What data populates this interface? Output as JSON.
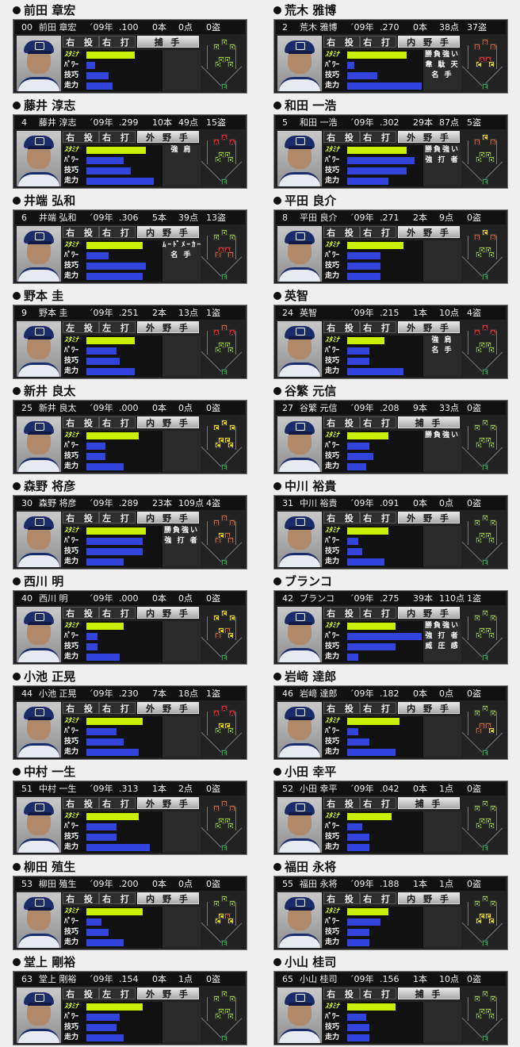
{
  "labels": {
    "stamina": "ｽﾀﾐﾅ",
    "power": "ﾊﾟﾜｰ",
    "technique": "技巧",
    "speed": "走力"
  },
  "grade_colors": {
    "A": "#d12a2a",
    "B": "#d0652a",
    "C": "#e8d81a",
    "D": "#9ccc2a",
    "E": "#2aa64a",
    "S": "#cc2ad0"
  },
  "bar_colors": {
    "stamina": "#c8f000",
    "other": "#3344dd"
  },
  "players": [
    {
      "name": "前田 章宏",
      "num": "00",
      "short": "前田 章宏",
      "year": "´09年",
      "avg": ".100",
      "hr": "0本",
      "rbi": "0点",
      "sb": "0盗",
      "throw": "右 投",
      "bat": "右 打",
      "pos": "捕 手",
      "stamina": 0.65,
      "power": 0.12,
      "tech": 0.3,
      "speed": 0.35,
      "abilities": [],
      "field": {
        "LF": "D",
        "CF": "D",
        "RF": "D",
        "3B": "D",
        "SS": "D",
        "2B": "D",
        "1B": "D",
        "C": "E"
      }
    },
    {
      "name": "荒木 雅博",
      "num": "2",
      "short": "荒木 雅博",
      "year": "´09年",
      "avg": ".270",
      "hr": "0本",
      "rbi": "38点",
      "sb": "37盗",
      "throw": "右 投",
      "bat": "右 打",
      "pos": "内 野 手",
      "stamina": 0.8,
      "power": 0.1,
      "tech": 0.4,
      "speed": 1.0,
      "abilities": [
        "勝負強い",
        "韋 駄 天",
        "名  手"
      ],
      "field": {
        "LF": "B",
        "CF": "B",
        "RF": "B",
        "3B": "C",
        "SS": "A",
        "2B": "A",
        "1B": "C",
        "C": "E"
      }
    },
    {
      "name": "藤井 淳志",
      "num": "4",
      "short": "藤井 淳志",
      "year": "´09年",
      "avg": ".299",
      "hr": "10本",
      "rbi": "49点",
      "sb": "15盗",
      "throw": "右 投",
      "bat": "右 打",
      "pos": "外 野 手",
      "stamina": 0.8,
      "power": 0.5,
      "tech": 0.6,
      "speed": 0.9,
      "abilities": [
        "強  肩"
      ],
      "field": {
        "LF": "A",
        "CF": "A",
        "RF": "A",
        "3B": "D",
        "SS": "D",
        "2B": "D",
        "1B": "D",
        "C": "E"
      }
    },
    {
      "name": "和田 一浩",
      "num": "5",
      "short": "和田 一浩",
      "year": "´09年",
      "avg": ".302",
      "hr": "29本",
      "rbi": "87点",
      "sb": "5盗",
      "throw": "右 投",
      "bat": "右 打",
      "pos": "外 野 手",
      "stamina": 0.8,
      "power": 0.9,
      "tech": 0.8,
      "speed": 0.55,
      "abilities": [
        "勝負強い",
        "強 打 者"
      ],
      "field": {
        "LF": "B",
        "CF": "C",
        "RF": "B",
        "3B": "D",
        "SS": "D",
        "2B": "D",
        "1B": "D",
        "C": "E"
      }
    },
    {
      "name": "井端 弘和",
      "num": "6",
      "short": "井端 弘和",
      "year": "´09年",
      "avg": ".306",
      "hr": "5本",
      "rbi": "39点",
      "sb": "13盗",
      "throw": "右 投",
      "bat": "右 打",
      "pos": "内 野 手",
      "stamina": 0.75,
      "power": 0.3,
      "tech": 0.8,
      "speed": 0.75,
      "abilities": [
        "ﾑｰﾄﾞﾒｰｶｰ",
        "名  手"
      ],
      "field": {
        "LF": "D",
        "CF": "D",
        "RF": "D",
        "3B": "B",
        "SS": "A",
        "2B": "A",
        "1B": "B",
        "C": "E"
      }
    },
    {
      "name": "平田 良介",
      "num": "8",
      "short": "平田 良介",
      "year": "´09年",
      "avg": ".271",
      "hr": "2本",
      "rbi": "9点",
      "sb": "0盗",
      "throw": "右 投",
      "bat": "右 打",
      "pos": "外 野 手",
      "stamina": 0.75,
      "power": 0.45,
      "tech": 0.45,
      "speed": 0.45,
      "abilities": [],
      "field": {
        "LF": "B",
        "CF": "C",
        "RF": "B",
        "3B": "D",
        "SS": "D",
        "2B": "D",
        "1B": "D",
        "C": "E"
      }
    },
    {
      "name": "野本 圭",
      "num": "9",
      "short": "野本 圭",
      "year": "´09年",
      "avg": ".251",
      "hr": "2本",
      "rbi": "13点",
      "sb": "1盗",
      "throw": "左 投",
      "bat": "左 打",
      "pos": "外 野 手",
      "stamina": 0.65,
      "power": 0.4,
      "tech": 0.45,
      "speed": 0.65,
      "abilities": [],
      "field": {
        "LF": "A",
        "CF": "B",
        "RF": "A",
        "3B": "D",
        "SS": "D",
        "2B": "D",
        "1B": "D",
        "C": "E"
      }
    },
    {
      "name": "英智",
      "num": "24",
      "short": "英智",
      "year": "´09年",
      "avg": ".215",
      "hr": "1本",
      "rbi": "10点",
      "sb": "4盗",
      "throw": "右 投",
      "bat": "右 打",
      "pos": "外 野 手",
      "stamina": 0.5,
      "power": 0.3,
      "tech": 0.3,
      "speed": 0.75,
      "abilities": [
        "強  肩",
        "名  手"
      ],
      "field": {
        "LF": "A",
        "CF": "A",
        "RF": "A",
        "3B": "D",
        "SS": "D",
        "2B": "D",
        "1B": "D",
        "C": "E"
      }
    },
    {
      "name": "新井 良太",
      "num": "25",
      "short": "新井 良太",
      "year": "´09年",
      "avg": ".000",
      "hr": "0本",
      "rbi": "0点",
      "sb": "0盗",
      "throw": "右 投",
      "bat": "右 打",
      "pos": "内 野 手",
      "stamina": 0.7,
      "power": 0.25,
      "tech": 0.25,
      "speed": 0.5,
      "abilities": [],
      "field": {
        "LF": "C",
        "CF": "C",
        "RF": "C",
        "3B": "C",
        "SS": "C",
        "2B": "C",
        "1B": "C",
        "C": "E"
      }
    },
    {
      "name": "谷繁 元信",
      "num": "27",
      "short": "谷繁 元信",
      "year": "´09年",
      "avg": ".208",
      "hr": "9本",
      "rbi": "33点",
      "sb": "0盗",
      "throw": "右 投",
      "bat": "右 打",
      "pos": "捕 手",
      "stamina": 0.55,
      "power": 0.3,
      "tech": 0.35,
      "speed": 0.25,
      "abilities": [
        "勝負強い"
      ],
      "field": {
        "LF": "D",
        "CF": "D",
        "RF": "D",
        "3B": "D",
        "SS": "D",
        "2B": "D",
        "1B": "D",
        "C": "E"
      }
    },
    {
      "name": "森野 将彦",
      "num": "30",
      "short": "森野 将彦",
      "year": "´09年",
      "avg": ".289",
      "hr": "23本",
      "rbi": "109点",
      "sb": "4盗",
      "throw": "右 投",
      "bat": "左 打",
      "pos": "内 野 手",
      "stamina": 0.8,
      "power": 0.75,
      "tech": 0.75,
      "speed": 0.5,
      "abilities": [
        "勝負強い",
        "強 打 者"
      ],
      "field": {
        "LF": "B",
        "CF": "B",
        "RF": "B",
        "3B": "B",
        "SS": "C",
        "2B": "B",
        "1B": "B",
        "C": "E"
      }
    },
    {
      "name": "中川 裕貴",
      "num": "31",
      "short": "中川 裕貴",
      "year": "´09年",
      "avg": ".091",
      "hr": "0本",
      "rbi": "0点",
      "sb": "0盗",
      "throw": "右 投",
      "bat": "右 打",
      "pos": "外 野 手",
      "stamina": 0.55,
      "power": 0.15,
      "tech": 0.2,
      "speed": 0.5,
      "abilities": [],
      "field": {
        "LF": "D",
        "CF": "D",
        "RF": "D",
        "3B": "D",
        "SS": "D",
        "2B": "D",
        "1B": "D",
        "C": "E"
      }
    },
    {
      "name": "西川 明",
      "num": "40",
      "short": "西川 明",
      "year": "´09年",
      "avg": ".000",
      "hr": "0本",
      "rbi": "0点",
      "sb": "0盗",
      "throw": "右 投",
      "bat": "右 打",
      "pos": "内 野 手",
      "stamina": 0.5,
      "power": 0.15,
      "tech": 0.15,
      "speed": 0.45,
      "abilities": [],
      "field": {
        "LF": "C",
        "CF": "C",
        "RF": "C",
        "3B": "B",
        "SS": "C",
        "2B": "B",
        "1B": "C",
        "C": "E"
      }
    },
    {
      "name": "ブランコ",
      "num": "42",
      "short": "ブランコ",
      "year": "´09年",
      "avg": ".275",
      "hr": "39本",
      "rbi": "110点",
      "sb": "1盗",
      "throw": "右 投",
      "bat": "右 打",
      "pos": "内 野 手",
      "stamina": 0.65,
      "power": 1.0,
      "tech": 0.65,
      "speed": 0.15,
      "abilities": [
        "勝負強い",
        "強 打 者",
        "威 圧 感"
      ],
      "field": {
        "LF": "D",
        "CF": "D",
        "RF": "D",
        "3B": "D",
        "SS": "D",
        "2B": "D",
        "1B": "D",
        "C": "E"
      }
    },
    {
      "name": "小池 正晃",
      "num": "44",
      "short": "小池 正晃",
      "year": "´09年",
      "avg": ".230",
      "hr": "7本",
      "rbi": "18点",
      "sb": "1盗",
      "throw": "右 投",
      "bat": "右 打",
      "pos": "外 野 手",
      "stamina": 0.75,
      "power": 0.4,
      "tech": 0.5,
      "speed": 0.7,
      "abilities": [],
      "field": {
        "LF": "A",
        "CF": "A",
        "RF": "A",
        "3B": "D",
        "SS": "C",
        "2B": "C",
        "1B": "D",
        "C": "E"
      }
    },
    {
      "name": "岩﨑 達郎",
      "num": "46",
      "short": "岩﨑 達郎",
      "year": "´09年",
      "avg": ".182",
      "hr": "0本",
      "rbi": "0点",
      "sb": "0盗",
      "throw": "右 投",
      "bat": "右 打",
      "pos": "内 野 手",
      "stamina": 0.7,
      "power": 0.15,
      "tech": 0.3,
      "speed": 0.65,
      "abilities": [],
      "field": {
        "LF": "D",
        "CF": "D",
        "RF": "D",
        "3B": "B",
        "SS": "B",
        "2B": "B",
        "1B": "C",
        "C": "E"
      }
    },
    {
      "name": "中村 一生",
      "num": "51",
      "short": "中村 一生",
      "year": "´09年",
      "avg": ".313",
      "hr": "1本",
      "rbi": "2点",
      "sb": "0盗",
      "throw": "右 投",
      "bat": "右 打",
      "pos": "外 野 手",
      "stamina": 0.7,
      "power": 0.4,
      "tech": 0.4,
      "speed": 0.85,
      "abilities": [],
      "field": {
        "LF": "B",
        "CF": "B",
        "RF": "B",
        "3B": "D",
        "SS": "D",
        "2B": "D",
        "1B": "D",
        "C": "E"
      }
    },
    {
      "name": "小田 幸平",
      "num": "52",
      "short": "小田 幸平",
      "year": "´09年",
      "avg": ".042",
      "hr": "0本",
      "rbi": "1点",
      "sb": "0盗",
      "throw": "右 投",
      "bat": "右 打",
      "pos": "捕 手",
      "stamina": 0.6,
      "power": 0.2,
      "tech": 0.3,
      "speed": 0.3,
      "abilities": [],
      "field": {
        "LF": "D",
        "CF": "D",
        "RF": "D",
        "3B": "D",
        "SS": "D",
        "2B": "D",
        "1B": "D",
        "C": "E"
      }
    },
    {
      "name": "柳田 殖生",
      "num": "53",
      "short": "柳田 殖生",
      "year": "´09年",
      "avg": ".200",
      "hr": "0本",
      "rbi": "0点",
      "sb": "0盗",
      "throw": "右 投",
      "bat": "右 打",
      "pos": "内 野 手",
      "stamina": 0.75,
      "power": 0.2,
      "tech": 0.3,
      "speed": 0.5,
      "abilities": [],
      "field": {
        "LF": "D",
        "CF": "D",
        "RF": "D",
        "3B": "C",
        "SS": "C",
        "2B": "B",
        "1B": "C",
        "C": "E"
      }
    },
    {
      "name": "福田 永将",
      "num": "55",
      "short": "福田 永将",
      "year": "´09年",
      "avg": ".188",
      "hr": "1本",
      "rbi": "1点",
      "sb": "0盗",
      "throw": "右 投",
      "bat": "右 打",
      "pos": "内 野 手",
      "stamina": 0.55,
      "power": 0.45,
      "tech": 0.3,
      "speed": 0.3,
      "abilities": [],
      "field": {
        "LF": "D",
        "CF": "D",
        "RF": "D",
        "3B": "C",
        "SS": "C",
        "2B": "C",
        "1B": "C",
        "C": "E"
      }
    },
    {
      "name": "堂上 剛裕",
      "num": "63",
      "short": "堂上 剛裕",
      "year": "´09年",
      "avg": ".154",
      "hr": "0本",
      "rbi": "1点",
      "sb": "0盗",
      "throw": "右 投",
      "bat": "左 打",
      "pos": "外 野 手",
      "stamina": 0.75,
      "power": 0.45,
      "tech": 0.4,
      "speed": 0.5,
      "abilities": [],
      "field": {
        "LF": "D",
        "CF": "D",
        "RF": "D",
        "3B": "D",
        "SS": "D",
        "2B": "D",
        "1B": "D",
        "C": "E"
      }
    },
    {
      "name": "小山 桂司",
      "num": "65",
      "short": "小山 桂司",
      "year": "´09年",
      "avg": ".156",
      "hr": "1本",
      "rbi": "10点",
      "sb": "0盗",
      "throw": "右 投",
      "bat": "右 打",
      "pos": "捕 手",
      "stamina": 0.65,
      "power": 0.25,
      "tech": 0.3,
      "speed": 0.3,
      "abilities": [],
      "field": {
        "LF": "D",
        "CF": "D",
        "RF": "D",
        "3B": "D",
        "SS": "D",
        "2B": "D",
        "1B": "D",
        "C": "E"
      }
    }
  ]
}
